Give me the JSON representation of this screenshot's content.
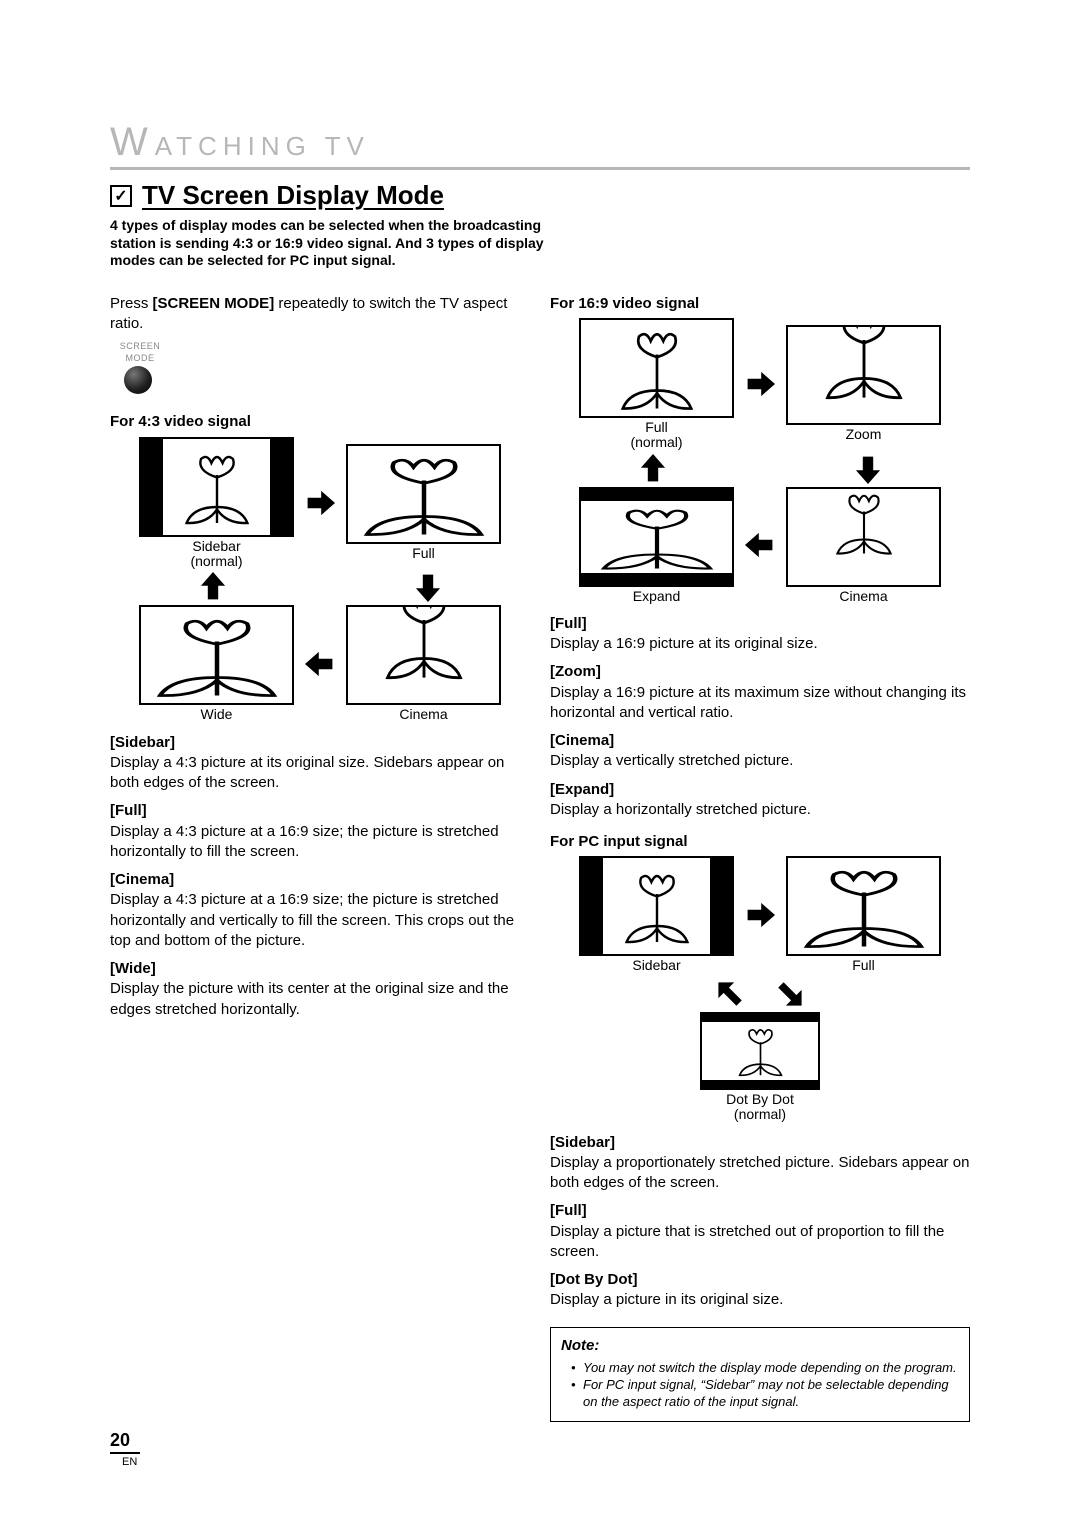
{
  "header": {
    "big_letter": "W",
    "rest": "ATCHING   TV"
  },
  "section": {
    "title": "TV Screen Display Mode",
    "intro": "4 types of display modes can be selected when the broadcasting station is sending 4:3 or 16:9 video signal. And 3 types of display modes can be selected for PC input signal."
  },
  "left": {
    "press_pre": "Press ",
    "press_bold": "[SCREEN MODE]",
    "press_post": " repeatedly to switch the TV aspect ratio.",
    "button_label_l1": "SCREEN",
    "button_label_l2": "MODE",
    "heading_43": "For 4:3 video signal",
    "diag43": {
      "sidebar": "Sidebar",
      "sidebar_sub": "(normal)",
      "full": "Full",
      "cinema": "Cinema",
      "wide": "Wide"
    },
    "desc": [
      {
        "h": "[Sidebar]",
        "t": "Display a 4:3 picture at its original size. Sidebars appear on both edges of the screen."
      },
      {
        "h": "[Full]",
        "t": "Display a 4:3 picture at a 16:9 size; the picture is stretched horizontally to fill the screen."
      },
      {
        "h": "[Cinema]",
        "t": "Display a 4:3 picture at a 16:9 size; the picture is stretched horizontally and vertically to fill the screen. This crops out the top and bottom of the picture."
      },
      {
        "h": "[Wide]",
        "t": "Display the picture with its center at the original size and the edges stretched horizontally."
      }
    ]
  },
  "right": {
    "heading_169": "For 16:9 video signal",
    "diag169": {
      "full": "Full",
      "full_sub": "(normal)",
      "zoom": "Zoom",
      "expand": "Expand",
      "cinema": "Cinema"
    },
    "desc169": [
      {
        "h": "[Full]",
        "t": "Display a 16:9 picture at its original size."
      },
      {
        "h": "[Zoom]",
        "t": "Display a 16:9 picture at its maximum size without changing its horizontal and vertical ratio."
      },
      {
        "h": "[Cinema]",
        "t": "Display a vertically stretched picture."
      },
      {
        "h": "[Expand]",
        "t": "Display a horizontally stretched picture."
      }
    ],
    "heading_pc": "For PC input signal",
    "diagpc": {
      "sidebar": "Sidebar",
      "full": "Full",
      "dotbydot": "Dot By Dot",
      "dot_sub": "(normal)"
    },
    "descpc": [
      {
        "h": "[Sidebar]",
        "t": "Display a proportionately stretched picture. Sidebars appear on both edges of the screen."
      },
      {
        "h": "[Full]",
        "t": "Display a picture that is stretched out of proportion to fill the screen."
      },
      {
        "h": "[Dot By Dot]",
        "t": "Display a picture in its original size."
      }
    ],
    "note": {
      "title": "Note:",
      "items": [
        "You may not switch the display mode depending on the program.",
        "For PC input signal, “Sidebar” may not be selectable depending on the aspect ratio of the input signal."
      ]
    }
  },
  "footer": {
    "page": "20",
    "lang": "EN"
  }
}
